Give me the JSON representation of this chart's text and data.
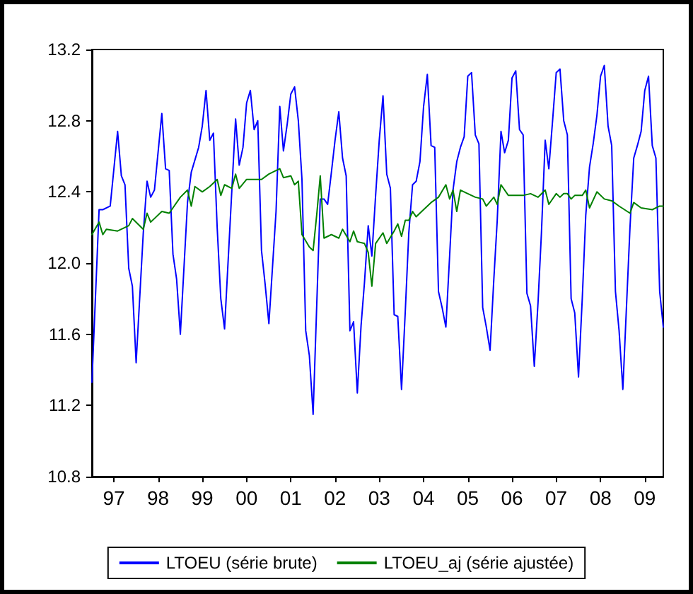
{
  "chart_data": {
    "type": "line",
    "xlim": [
      "1997-01",
      "2009-12"
    ],
    "xticks": [
      {
        "value": "1997-07",
        "label": "97"
      },
      {
        "value": "1998-07",
        "label": "98"
      },
      {
        "value": "1999-07",
        "label": "99"
      },
      {
        "value": "2000-07",
        "label": "00"
      },
      {
        "value": "2001-07",
        "label": "01"
      },
      {
        "value": "2002-07",
        "label": "02"
      },
      {
        "value": "2003-07",
        "label": "03"
      },
      {
        "value": "2004-07",
        "label": "04"
      },
      {
        "value": "2005-07",
        "label": "05"
      },
      {
        "value": "2006-07",
        "label": "06"
      },
      {
        "value": "2007-07",
        "label": "07"
      },
      {
        "value": "2008-07",
        "label": "08"
      },
      {
        "value": "2009-07",
        "label": "09"
      }
    ],
    "ylim": [
      10.8,
      13.2
    ],
    "yticks": [
      10.8,
      11.2,
      11.6,
      {
        "value": 12,
        "label": "12.0"
      },
      12.4,
      12.8,
      13.2
    ],
    "grid": false,
    "legend": "bottom",
    "marker": "none",
    "line_style": "solid",
    "series": [
      {
        "name": "LTOEU (série brute)",
        "color": "#0000ff",
        "x": [
          "1997-01",
          "1997-03",
          "1997-04",
          "1997-06",
          "1997-08",
          "1997-09",
          "1997-10",
          "1997-11",
          "1997-12",
          "1998-01",
          "1998-03",
          "1998-04",
          "1998-05",
          "1998-06",
          "1998-08",
          "1998-09",
          "1998-10",
          "1998-11",
          "1998-12",
          "1999-01",
          "1999-03",
          "1999-04",
          "1999-06",
          "1999-07",
          "1999-08",
          "1999-09",
          "1999-10",
          "1999-11",
          "1999-12",
          "2000-01",
          "2000-04",
          "2000-05",
          "2000-06",
          "2000-07",
          "2000-08",
          "2000-09",
          "2000-10",
          "2000-11",
          "2000-12",
          "2001-01",
          "2001-03",
          "2001-04",
          "2001-05",
          "2001-06",
          "2001-07",
          "2001-08",
          "2001-09",
          "2001-10",
          "2001-11",
          "2001-12",
          "2002-01",
          "2002-03",
          "2002-04",
          "2002-05",
          "2002-06",
          "2002-07",
          "2002-08",
          "2002-09",
          "2002-10",
          "2002-11",
          "2002-12",
          "2003-01",
          "2003-02",
          "2003-03",
          "2003-04",
          "2003-05",
          "2003-06",
          "2003-07",
          "2003-08",
          "2003-09",
          "2003-10",
          "2003-11",
          "2003-12",
          "2004-01",
          "2004-02",
          "2004-03",
          "2004-04",
          "2004-05",
          "2004-06",
          "2004-07",
          "2004-08",
          "2004-09",
          "2004-10",
          "2004-11",
          "2004-12",
          "2005-01",
          "2005-02",
          "2005-03",
          "2005-04",
          "2005-05",
          "2005-06",
          "2005-07",
          "2005-08",
          "2005-09",
          "2005-10",
          "2005-11",
          "2005-12",
          "2006-01",
          "2006-02",
          "2006-03",
          "2006-04",
          "2006-05",
          "2006-06",
          "2006-07",
          "2006-08",
          "2006-09",
          "2006-10",
          "2006-11",
          "2006-12",
          "2007-01",
          "2007-02",
          "2007-03",
          "2007-04",
          "2007-05",
          "2007-06",
          "2007-07",
          "2007-08",
          "2007-09",
          "2007-10",
          "2007-11",
          "2007-12",
          "2008-01",
          "2008-02",
          "2008-03",
          "2008-04",
          "2008-05",
          "2008-06",
          "2008-07",
          "2008-08",
          "2008-09",
          "2008-10",
          "2008-11",
          "2008-12",
          "2009-01",
          "2009-02",
          "2009-03",
          "2009-04",
          "2009-05",
          "2009-06",
          "2009-07",
          "2009-08",
          "2009-09",
          "2009-10",
          "2009-11",
          "2009-12"
        ],
        "values": [
          11.33,
          12.3,
          12.3,
          12.32,
          12.74,
          12.49,
          12.44,
          11.97,
          11.87,
          11.44,
          12.17,
          12.46,
          12.37,
          12.41,
          12.84,
          12.53,
          12.52,
          12.05,
          11.91,
          11.6,
          12.34,
          12.51,
          12.65,
          12.77,
          12.97,
          12.69,
          12.73,
          12.2,
          11.8,
          11.63,
          12.81,
          12.55,
          12.65,
          12.9,
          12.97,
          12.75,
          12.8,
          12.07,
          11.88,
          11.66,
          12.29,
          12.88,
          12.63,
          12.78,
          12.95,
          12.99,
          12.8,
          12.47,
          11.62,
          11.48,
          11.15,
          12.36,
          12.36,
          12.33,
          12.51,
          12.69,
          12.85,
          12.59,
          12.49,
          11.62,
          11.67,
          11.27,
          11.65,
          11.89,
          12.21,
          12.04,
          12.38,
          12.69,
          12.94,
          12.5,
          12.42,
          11.71,
          11.7,
          11.29,
          11.73,
          12.17,
          12.44,
          12.46,
          12.57,
          12.88,
          13.06,
          12.66,
          12.65,
          11.84,
          11.75,
          11.64,
          12.04,
          12.41,
          12.57,
          12.65,
          12.71,
          13.05,
          13.07,
          12.72,
          12.67,
          11.75,
          11.64,
          11.51,
          11.91,
          12.24,
          12.74,
          12.62,
          12.69,
          13.04,
          13.08,
          12.75,
          12.72,
          11.83,
          11.76,
          11.42,
          11.78,
          12.17,
          12.69,
          12.53,
          12.8,
          13.07,
          13.09,
          12.8,
          12.72,
          11.8,
          11.72,
          11.36,
          11.8,
          12.27,
          12.54,
          12.67,
          12.83,
          13.05,
          13.11,
          12.77,
          12.66,
          11.84,
          11.62,
          11.29,
          11.77,
          12.2,
          12.59,
          12.66,
          12.74,
          12.97,
          13.05,
          12.66,
          12.59,
          11.84,
          11.64
        ]
      },
      {
        "name": "LTOEU_aj (série ajustée)",
        "color": "#008000",
        "x": [
          "1997-01",
          "1997-03",
          "1997-04",
          "1997-05",
          "1997-08",
          "1997-11",
          "1997-12",
          "1998-03",
          "1998-04",
          "1998-05",
          "1998-08",
          "1998-10",
          "1999-01",
          "1999-03",
          "1999-04",
          "1999-05",
          "1999-07",
          "1999-09",
          "1999-11",
          "1999-12",
          "2000-01",
          "2000-03",
          "2000-04",
          "2000-05",
          "2000-07",
          "2000-09",
          "2000-11",
          "2001-01",
          "2001-03",
          "2001-04",
          "2001-05",
          "2001-07",
          "2001-08",
          "2001-09",
          "2001-10",
          "2001-12",
          "2002-01",
          "2002-02",
          "2002-03",
          "2002-04",
          "2002-06",
          "2002-08",
          "2002-09",
          "2002-11",
          "2002-12",
          "2003-01",
          "2003-03",
          "2003-04",
          "2003-05",
          "2003-06",
          "2003-08",
          "2003-09",
          "2003-11",
          "2003-12",
          "2004-01",
          "2004-02",
          "2004-03",
          "2004-04",
          "2004-05",
          "2004-07",
          "2004-09",
          "2004-11",
          "2005-01",
          "2005-02",
          "2005-03",
          "2005-04",
          "2005-05",
          "2005-07",
          "2005-09",
          "2005-11",
          "2005-12",
          "2006-02",
          "2006-03",
          "2006-04",
          "2006-06",
          "2006-10",
          "2006-12",
          "2007-02",
          "2007-04",
          "2007-05",
          "2007-07",
          "2007-08",
          "2007-09",
          "2007-10",
          "2007-11",
          "2007-12",
          "2008-02",
          "2008-03",
          "2008-04",
          "2008-06",
          "2008-08",
          "2008-10",
          "2008-12",
          "2009-03",
          "2009-04",
          "2009-06",
          "2009-09",
          "2009-11",
          "2009-12"
        ],
        "values": [
          12.16,
          12.23,
          12.16,
          12.19,
          12.18,
          12.21,
          12.25,
          12.19,
          12.28,
          12.23,
          12.29,
          12.28,
          12.37,
          12.41,
          12.32,
          12.43,
          12.4,
          12.43,
          12.47,
          12.38,
          12.44,
          12.42,
          12.5,
          12.42,
          12.47,
          12.47,
          12.47,
          12.5,
          12.52,
          12.53,
          12.48,
          12.49,
          12.44,
          12.46,
          12.16,
          12.09,
          12.07,
          12.28,
          12.49,
          12.14,
          12.16,
          12.14,
          12.19,
          12.12,
          12.18,
          12.12,
          12.11,
          12.06,
          11.87,
          12.11,
          12.17,
          12.11,
          12.18,
          12.22,
          12.15,
          12.24,
          12.24,
          12.29,
          12.26,
          12.3,
          12.34,
          12.37,
          12.44,
          12.36,
          12.41,
          12.29,
          12.41,
          12.39,
          12.37,
          12.36,
          12.32,
          12.37,
          12.33,
          12.44,
          12.38,
          12.38,
          12.39,
          12.37,
          12.41,
          12.33,
          12.39,
          12.37,
          12.39,
          12.39,
          12.36,
          12.38,
          12.38,
          12.41,
          12.31,
          12.4,
          12.36,
          12.35,
          12.32,
          12.28,
          12.34,
          12.31,
          12.3,
          12.32,
          12.32
        ]
      }
    ]
  }
}
